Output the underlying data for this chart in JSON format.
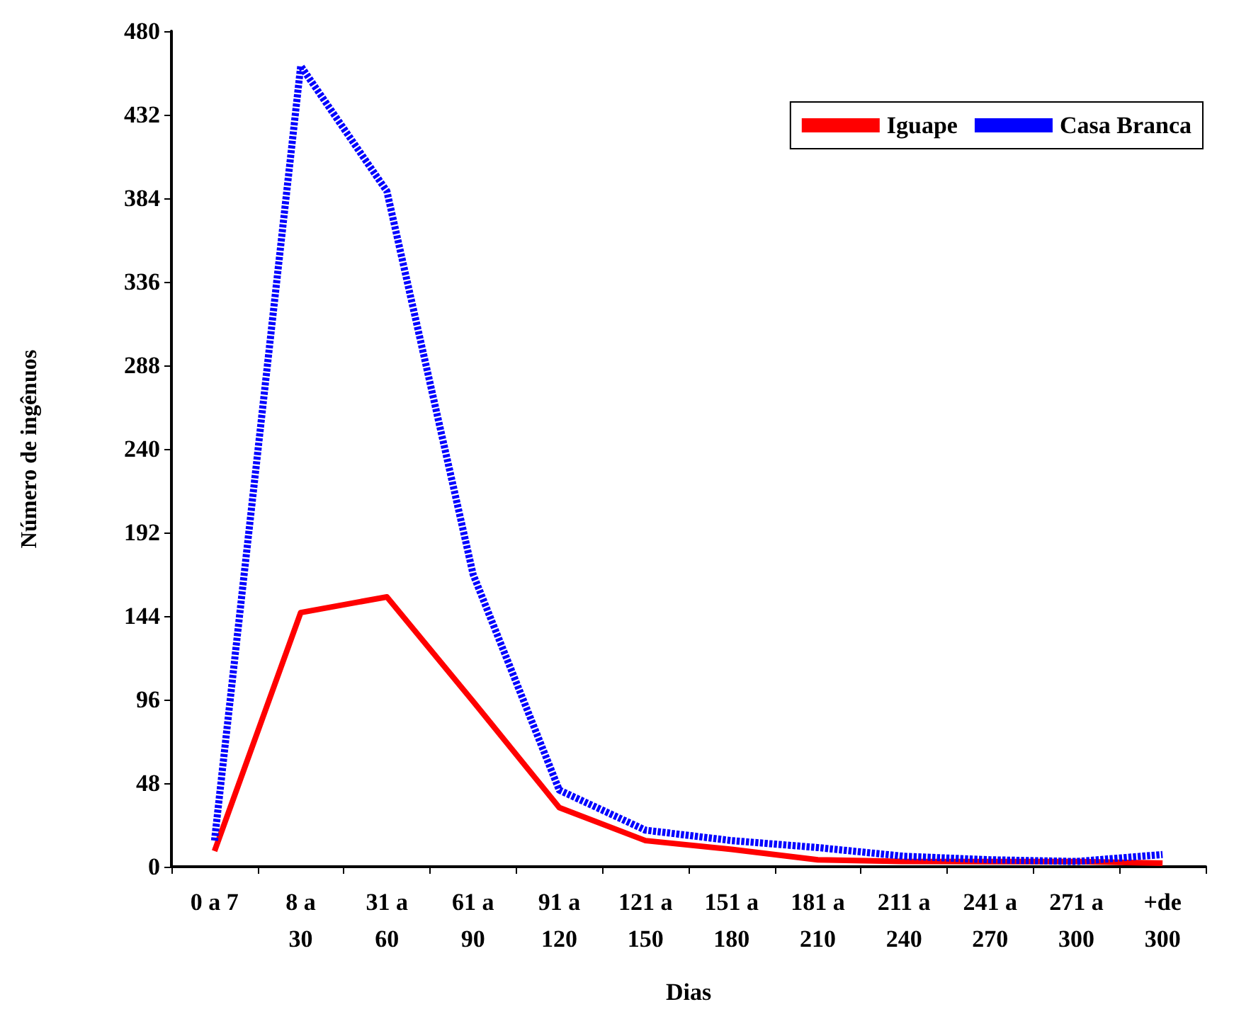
{
  "chart_data": {
    "type": "line",
    "xlabel": "Dias",
    "ylabel": "Número de ingênuos",
    "categories": [
      "0 a 7",
      "8 a\n30",
      "31 a\n60",
      "61 a\n90",
      "91 a\n120",
      "121 a\n150",
      "151 a\n180",
      "181 a\n210",
      "211 a\n240",
      "241 a\n270",
      "271 a\n300",
      "+de\n300"
    ],
    "series": [
      {
        "name": "Iguape",
        "color": "#ff0000",
        "line_style": "solid",
        "values": [
          9,
          146,
          155,
          95,
          34,
          15,
          10,
          4,
          3,
          3,
          3,
          2
        ]
      },
      {
        "name": "Casa Branca",
        "color": "#0000ff",
        "line_style": "dashed",
        "values": [
          15,
          460,
          388,
          168,
          44,
          21,
          15,
          11,
          6,
          4,
          3,
          7
        ]
      }
    ],
    "ylim": [
      0,
      480
    ],
    "yticks": [
      0,
      48,
      96,
      144,
      192,
      240,
      288,
      336,
      384,
      432,
      480
    ],
    "grid": false,
    "legend": "top right",
    "marker": "none"
  }
}
